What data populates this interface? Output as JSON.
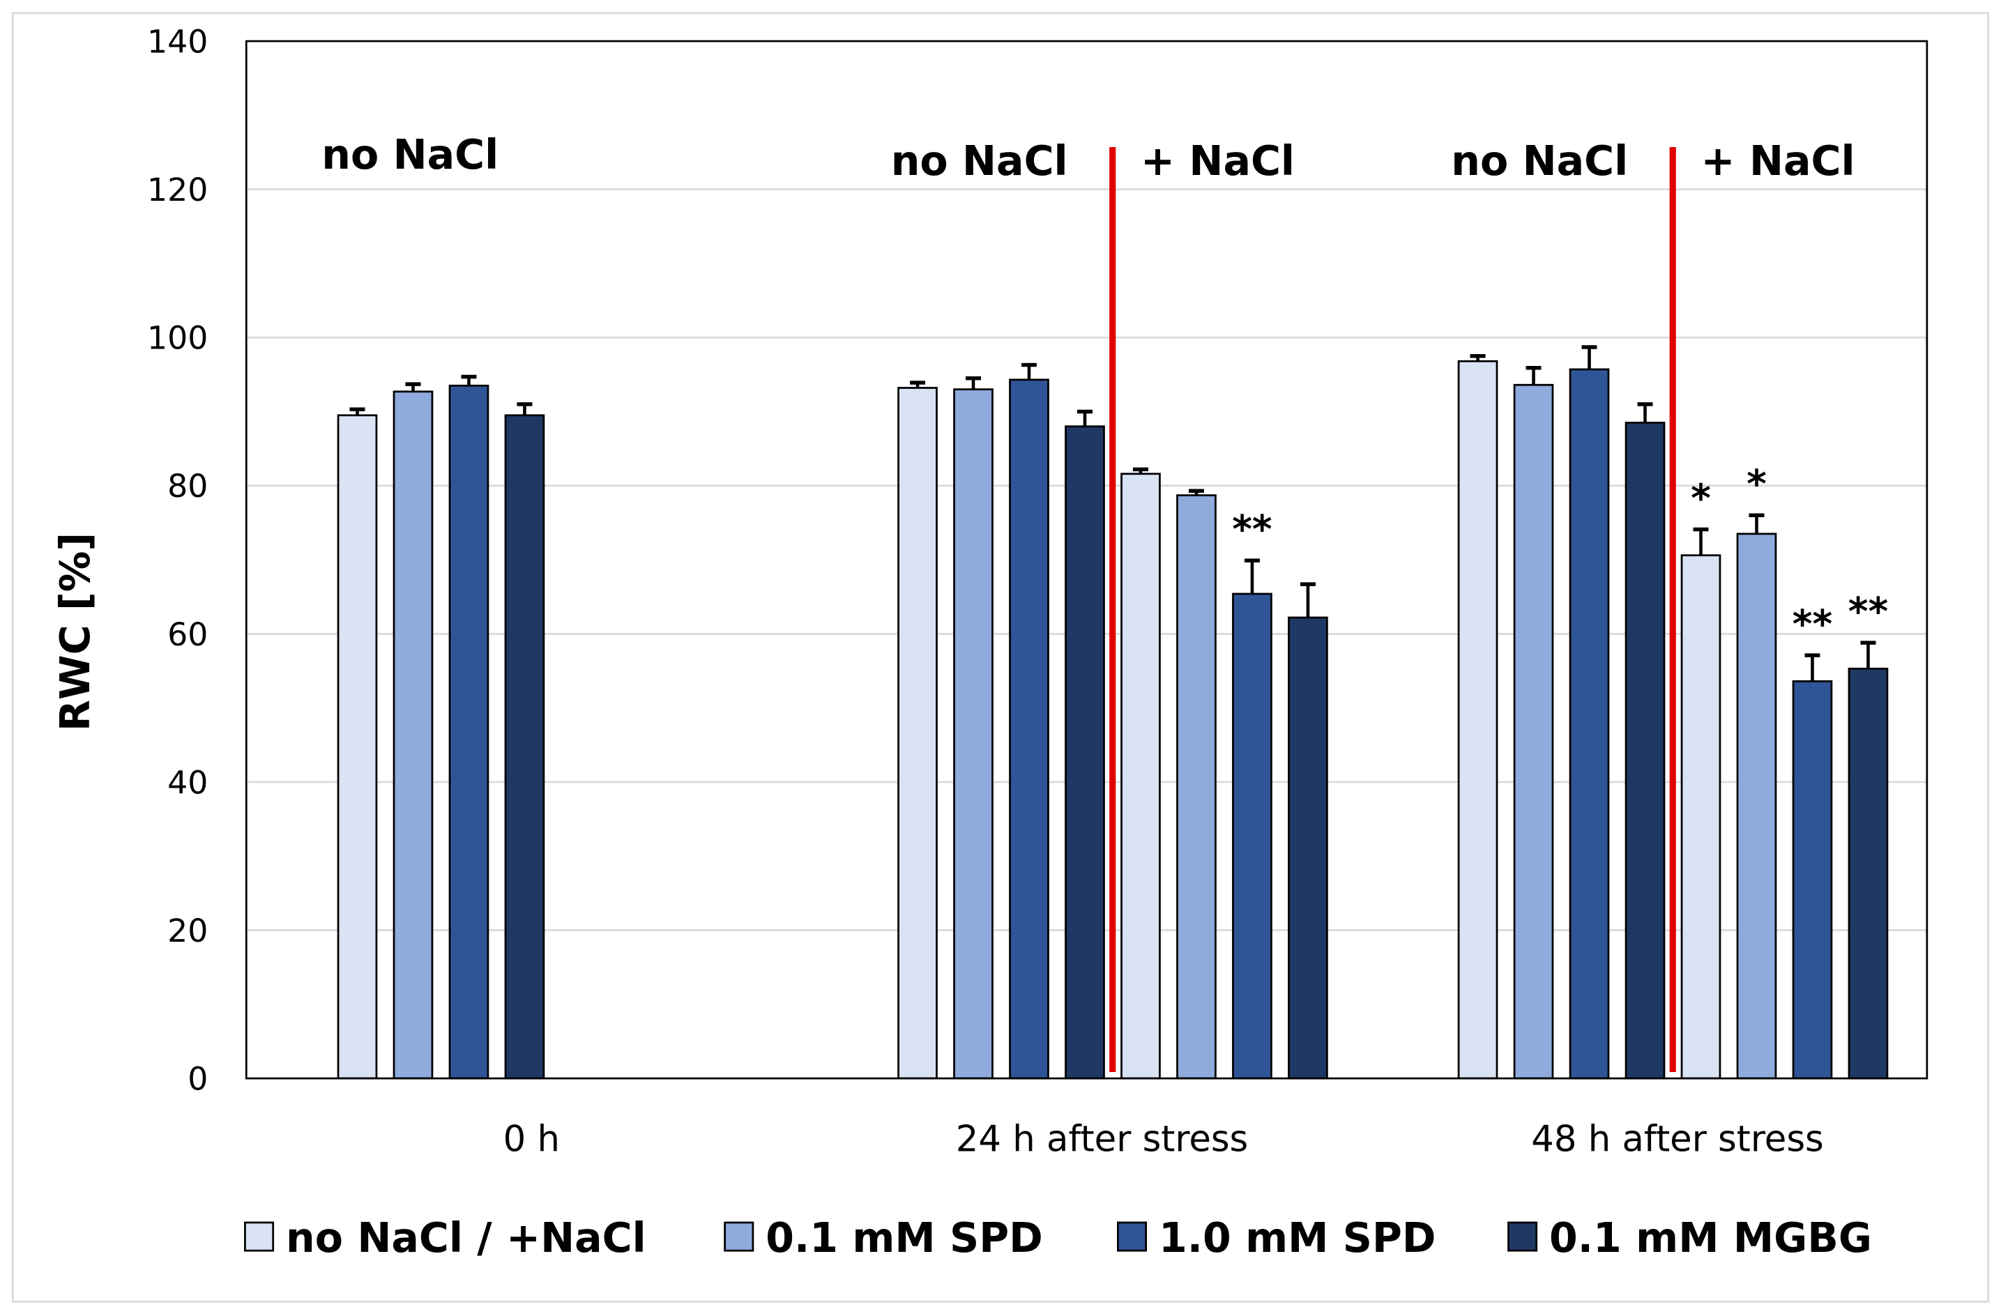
{
  "chart_data": {
    "type": "bar",
    "title": "",
    "xlabel": "",
    "ylabel": "RWC [%]",
    "ylim": [
      0,
      140
    ],
    "yticks": [
      0,
      20,
      40,
      60,
      80,
      100,
      120,
      140
    ],
    "grid": true,
    "legend_placement": "bottom",
    "categories": [
      "0 h",
      "24 h after stress",
      "48 h after stress"
    ],
    "condition_labels": {
      "no_nacl": "no NaCl",
      "nacl": "+ NaCl"
    },
    "series": [
      {
        "name": "no NaCl / +NaCl",
        "color": "#dae3f3",
        "no_nacl": [
          89.5,
          93.2,
          96.8
        ],
        "no_nacl_err": [
          0.8,
          0.7,
          0.7
        ],
        "nacl": [
          null,
          81.6,
          70.6
        ],
        "nacl_err": [
          null,
          0.6,
          3.5
        ],
        "nacl_sig": [
          null,
          "",
          "*"
        ]
      },
      {
        "name": "0.1 mM SPD",
        "color": "#8faadc",
        "no_nacl": [
          92.7,
          93.0,
          93.6
        ],
        "no_nacl_err": [
          1.0,
          1.5,
          2.3
        ],
        "nacl": [
          null,
          78.7,
          73.5
        ],
        "nacl_err": [
          null,
          0.6,
          2.5
        ],
        "nacl_sig": [
          null,
          "",
          "*"
        ]
      },
      {
        "name": "1.0 mM SPD",
        "color": "#2f5597",
        "no_nacl": [
          93.5,
          94.3,
          95.7
        ],
        "no_nacl_err": [
          1.2,
          2.0,
          3.0
        ],
        "nacl": [
          null,
          65.4,
          53.6
        ],
        "nacl_err": [
          null,
          4.5,
          3.5
        ],
        "nacl_sig": [
          null,
          "**",
          "**"
        ]
      },
      {
        "name": "0.1 mM MGBG",
        "color": "#203864",
        "no_nacl": [
          89.5,
          88.0,
          88.5
        ],
        "no_nacl_err": [
          1.5,
          2.0,
          2.5
        ],
        "nacl": [
          null,
          62.2,
          55.3
        ],
        "nacl_err": [
          null,
          4.5,
          3.5
        ],
        "nacl_sig": [
          null,
          "",
          "**"
        ]
      }
    ],
    "divider_color": "#e00000"
  }
}
